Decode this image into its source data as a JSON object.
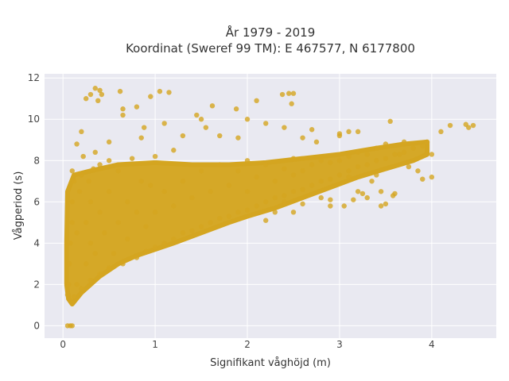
{
  "chart_data": {
    "type": "scatter",
    "title_lines": [
      "År 1979 - 2019",
      "Koordinat (Sweref 99 TM): E 467577, N 6177800"
    ],
    "xlabel": "Signifikant våghöjd (m)",
    "ylabel": "Vågperiod (s)",
    "xlim": [
      -0.2,
      4.7
    ],
    "ylim": [
      -0.6,
      12.2
    ],
    "xticks": [
      0,
      1,
      2,
      3,
      4
    ],
    "yticks": [
      0,
      2,
      4,
      6,
      8,
      10,
      12
    ],
    "grid": true,
    "legend": "none",
    "colors": {
      "marker": "#d4a520",
      "plot_bg": "#e9e9f1",
      "grid": "#ffffff"
    },
    "series": [
      {
        "values": [
          {
            "x": 0.05,
            "y": 0.0
          },
          {
            "x": 0.08,
            "y": 0.0
          },
          {
            "x": 0.1,
            "y": 0.0
          },
          {
            "x": 0.05,
            "y": 1.5
          },
          {
            "x": 0.08,
            "y": 1.2
          },
          {
            "x": 0.1,
            "y": 1.1
          },
          {
            "x": 0.12,
            "y": 1.4
          },
          {
            "x": 0.06,
            "y": 2.0
          },
          {
            "x": 0.07,
            "y": 3.0
          },
          {
            "x": 0.08,
            "y": 4.0
          },
          {
            "x": 0.1,
            "y": 5.0
          },
          {
            "x": 0.1,
            "y": 6.0
          },
          {
            "x": 0.12,
            "y": 7.0
          },
          {
            "x": 0.1,
            "y": 7.5
          },
          {
            "x": 0.15,
            "y": 2.0
          },
          {
            "x": 0.15,
            "y": 4.5
          },
          {
            "x": 0.18,
            "y": 6.5
          },
          {
            "x": 0.2,
            "y": 7.3
          },
          {
            "x": 0.2,
            "y": 1.8
          },
          {
            "x": 0.25,
            "y": 3.0
          },
          {
            "x": 0.25,
            "y": 5.0
          },
          {
            "x": 0.28,
            "y": 7.0
          },
          {
            "x": 0.3,
            "y": 2.2
          },
          {
            "x": 0.3,
            "y": 4.0
          },
          {
            "x": 0.3,
            "y": 6.0
          },
          {
            "x": 0.33,
            "y": 7.6
          },
          {
            "x": 0.35,
            "y": 3.5
          },
          {
            "x": 0.4,
            "y": 2.5
          },
          {
            "x": 0.4,
            "y": 5.5
          },
          {
            "x": 0.4,
            "y": 7.8
          },
          {
            "x": 0.45,
            "y": 4.5
          },
          {
            "x": 0.5,
            "y": 2.8
          },
          {
            "x": 0.5,
            "y": 6.5
          },
          {
            "x": 0.5,
            "y": 8.0
          },
          {
            "x": 0.55,
            "y": 3.5
          },
          {
            "x": 0.6,
            "y": 5.0
          },
          {
            "x": 0.6,
            "y": 7.5
          },
          {
            "x": 0.65,
            "y": 3.0
          },
          {
            "x": 0.7,
            "y": 4.2
          },
          {
            "x": 0.7,
            "y": 6.0
          },
          {
            "x": 0.75,
            "y": 8.1
          },
          {
            "x": 0.8,
            "y": 3.3
          },
          {
            "x": 0.8,
            "y": 5.5
          },
          {
            "x": 0.85,
            "y": 7.0
          },
          {
            "x": 0.9,
            "y": 3.6
          },
          {
            "x": 0.9,
            "y": 4.8
          },
          {
            "x": 0.95,
            "y": 6.8
          },
          {
            "x": 1.0,
            "y": 3.8
          },
          {
            "x": 1.0,
            "y": 5.5
          },
          {
            "x": 1.0,
            "y": 8.2
          },
          {
            "x": 1.1,
            "y": 4.0
          },
          {
            "x": 1.1,
            "y": 6.5
          },
          {
            "x": 1.2,
            "y": 4.2
          },
          {
            "x": 1.2,
            "y": 5.8
          },
          {
            "x": 1.2,
            "y": 8.5
          },
          {
            "x": 1.3,
            "y": 4.5
          },
          {
            "x": 1.3,
            "y": 7.0
          },
          {
            "x": 1.4,
            "y": 4.6
          },
          {
            "x": 1.4,
            "y": 6.2
          },
          {
            "x": 1.5,
            "y": 4.8
          },
          {
            "x": 1.5,
            "y": 7.5
          },
          {
            "x": 1.6,
            "y": 5.0
          },
          {
            "x": 1.6,
            "y": 6.5
          },
          {
            "x": 1.7,
            "y": 5.2
          },
          {
            "x": 1.7,
            "y": 7.8
          },
          {
            "x": 1.8,
            "y": 5.3
          },
          {
            "x": 1.8,
            "y": 6.8
          },
          {
            "x": 1.9,
            "y": 5.5
          },
          {
            "x": 1.9,
            "y": 7.5
          },
          {
            "x": 2.0,
            "y": 5.6
          },
          {
            "x": 2.0,
            "y": 6.5
          },
          {
            "x": 2.0,
            "y": 8.0
          },
          {
            "x": 2.1,
            "y": 5.8
          },
          {
            "x": 2.1,
            "y": 7.2
          },
          {
            "x": 2.2,
            "y": 6.0
          },
          {
            "x": 2.2,
            "y": 7.8
          },
          {
            "x": 2.3,
            "y": 6.2
          },
          {
            "x": 2.3,
            "y": 7.0
          },
          {
            "x": 2.4,
            "y": 6.3
          },
          {
            "x": 2.4,
            "y": 7.6
          },
          {
            "x": 2.5,
            "y": 6.5
          },
          {
            "x": 2.5,
            "y": 7.3
          },
          {
            "x": 2.5,
            "y": 8.1
          },
          {
            "x": 2.6,
            "y": 6.6
          },
          {
            "x": 2.6,
            "y": 7.5
          },
          {
            "x": 2.7,
            "y": 6.8
          },
          {
            "x": 2.7,
            "y": 7.8
          },
          {
            "x": 2.8,
            "y": 7.0
          },
          {
            "x": 2.8,
            "y": 8.0
          },
          {
            "x": 2.9,
            "y": 7.1
          },
          {
            "x": 2.9,
            "y": 7.9
          },
          {
            "x": 3.0,
            "y": 7.3
          },
          {
            "x": 3.0,
            "y": 8.0
          },
          {
            "x": 3.1,
            "y": 7.5
          },
          {
            "x": 3.1,
            "y": 8.2
          },
          {
            "x": 3.2,
            "y": 7.7
          },
          {
            "x": 3.2,
            "y": 8.4
          },
          {
            "x": 3.3,
            "y": 7.8
          },
          {
            "x": 3.3,
            "y": 8.3
          },
          {
            "x": 3.4,
            "y": 8.0
          },
          {
            "x": 3.4,
            "y": 8.6
          },
          {
            "x": 3.5,
            "y": 8.1
          },
          {
            "x": 3.5,
            "y": 8.8
          },
          {
            "x": 3.6,
            "y": 8.3
          },
          {
            "x": 3.7,
            "y": 8.4
          },
          {
            "x": 3.7,
            "y": 8.9
          },
          {
            "x": 3.8,
            "y": 8.6
          },
          {
            "x": 3.9,
            "y": 8.7
          },
          {
            "x": 3.95,
            "y": 8.9
          },
          {
            "x": 4.1,
            "y": 9.4
          },
          {
            "x": 4.2,
            "y": 9.7
          },
          {
            "x": 4.37,
            "y": 9.75
          },
          {
            "x": 4.4,
            "y": 9.6
          },
          {
            "x": 4.45,
            "y": 9.7
          },
          {
            "x": 3.55,
            "y": 9.9
          },
          {
            "x": 3.1,
            "y": 9.4
          },
          {
            "x": 3.2,
            "y": 9.4
          },
          {
            "x": 3.0,
            "y": 9.2
          },
          {
            "x": 2.75,
            "y": 8.9
          },
          {
            "x": 4.0,
            "y": 8.3
          },
          {
            "x": 3.65,
            "y": 8.3
          },
          {
            "x": 3.75,
            "y": 7.7
          },
          {
            "x": 3.4,
            "y": 7.3
          },
          {
            "x": 2.6,
            "y": 5.9
          },
          {
            "x": 2.3,
            "y": 5.5
          },
          {
            "x": 2.5,
            "y": 5.5
          },
          {
            "x": 2.2,
            "y": 5.1
          },
          {
            "x": 2.9,
            "y": 6.1
          },
          {
            "x": 3.15,
            "y": 6.1
          },
          {
            "x": 3.25,
            "y": 6.4
          },
          {
            "x": 3.3,
            "y": 6.2
          },
          {
            "x": 2.9,
            "y": 5.8
          },
          {
            "x": 3.05,
            "y": 5.8
          },
          {
            "x": 3.1,
            "y": 7.2
          },
          {
            "x": 3.45,
            "y": 5.8
          },
          {
            "x": 3.6,
            "y": 6.4
          },
          {
            "x": 3.45,
            "y": 6.5
          },
          {
            "x": 3.9,
            "y": 7.1
          },
          {
            "x": 4.0,
            "y": 7.2
          },
          {
            "x": 3.85,
            "y": 7.5
          },
          {
            "x": 3.35,
            "y": 7.0
          },
          {
            "x": 2.8,
            "y": 6.2
          },
          {
            "x": 2.4,
            "y": 6.0
          },
          {
            "x": 0.25,
            "y": 11.0
          },
          {
            "x": 0.35,
            "y": 11.5
          },
          {
            "x": 0.3,
            "y": 11.2
          },
          {
            "x": 0.4,
            "y": 11.4
          },
          {
            "x": 0.42,
            "y": 11.2
          },
          {
            "x": 0.62,
            "y": 11.35
          },
          {
            "x": 0.38,
            "y": 10.9
          },
          {
            "x": 0.65,
            "y": 10.5
          },
          {
            "x": 0.65,
            "y": 10.2
          },
          {
            "x": 0.8,
            "y": 10.6
          },
          {
            "x": 0.95,
            "y": 11.1
          },
          {
            "x": 1.05,
            "y": 11.35
          },
          {
            "x": 1.15,
            "y": 11.3
          },
          {
            "x": 1.62,
            "y": 10.65
          },
          {
            "x": 1.45,
            "y": 10.2
          },
          {
            "x": 1.5,
            "y": 10.0
          },
          {
            "x": 1.55,
            "y": 9.6
          },
          {
            "x": 1.88,
            "y": 10.5
          },
          {
            "x": 2.1,
            "y": 10.9
          },
          {
            "x": 2.38,
            "y": 11.2
          },
          {
            "x": 2.45,
            "y": 11.25
          },
          {
            "x": 2.5,
            "y": 11.25
          },
          {
            "x": 2.48,
            "y": 10.75
          },
          {
            "x": 1.1,
            "y": 9.8
          },
          {
            "x": 0.88,
            "y": 9.6
          },
          {
            "x": 2.0,
            "y": 10.0
          },
          {
            "x": 2.4,
            "y": 9.6
          },
          {
            "x": 2.7,
            "y": 9.5
          },
          {
            "x": 3.0,
            "y": 9.3
          },
          {
            "x": 2.2,
            "y": 9.8
          },
          {
            "x": 1.3,
            "y": 9.2
          },
          {
            "x": 0.85,
            "y": 9.1
          },
          {
            "x": 1.7,
            "y": 9.2
          },
          {
            "x": 0.2,
            "y": 9.4
          },
          {
            "x": 0.15,
            "y": 8.8
          },
          {
            "x": 0.35,
            "y": 8.4
          },
          {
            "x": 0.22,
            "y": 8.2
          },
          {
            "x": 0.5,
            "y": 8.9
          },
          {
            "x": 1.9,
            "y": 9.1
          },
          {
            "x": 2.6,
            "y": 9.1
          },
          {
            "x": 3.2,
            "y": 6.5
          },
          {
            "x": 3.58,
            "y": 6.3
          },
          {
            "x": 3.5,
            "y": 5.9
          }
        ]
      }
    ]
  }
}
